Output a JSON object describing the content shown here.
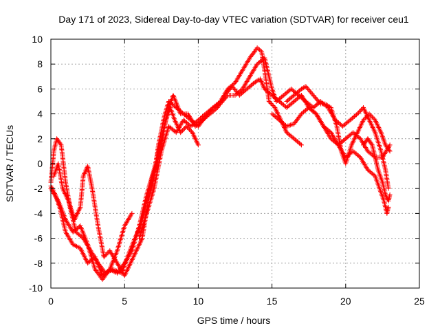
{
  "chart_data": {
    "type": "scatter",
    "title": "Day 171 of 2023, Sidereal Day-to-day VTEC variation (SDTVAR) for receiver ceu1",
    "xlabel": "GPS time / hours",
    "ylabel": "SDTVAR / TECUs",
    "xlim": [
      0,
      25
    ],
    "ylim": [
      -10,
      10
    ],
    "xticks": [
      0,
      5,
      10,
      15,
      20,
      25
    ],
    "yticks": [
      -10,
      -8,
      -6,
      -4,
      -2,
      0,
      2,
      4,
      6,
      8,
      10
    ],
    "grid": true,
    "marker": "+",
    "series": [
      {
        "name": "track-1",
        "color": "#ff0000",
        "points": [
          [
            0,
            -1.8
          ],
          [
            0.3,
            -2.5
          ],
          [
            0.6,
            -3.5
          ],
          [
            1.0,
            -5.5
          ],
          [
            1.5,
            -6.5
          ],
          [
            2.0,
            -6.8
          ],
          [
            2.5,
            -8.0
          ],
          [
            3.0,
            -7.5
          ],
          [
            3.5,
            -9.0
          ],
          [
            4.0,
            -8.5
          ],
          [
            4.5,
            -7.0
          ],
          [
            5.0,
            -5.0
          ],
          [
            5.5,
            -4.0
          ]
        ]
      },
      {
        "name": "track-2",
        "color": "#ff0000",
        "points": [
          [
            0,
            -1.5
          ],
          [
            0.2,
            1.0
          ],
          [
            0.4,
            2.0
          ],
          [
            0.7,
            1.5
          ],
          [
            1.0,
            -1.5
          ],
          [
            1.3,
            -3.5
          ],
          [
            1.7,
            -5.5
          ],
          [
            2.2,
            -6.0
          ],
          [
            2.7,
            -7.0
          ],
          [
            3.2,
            -8.0
          ],
          [
            3.7,
            -8.8
          ],
          [
            4.2,
            -8.5
          ],
          [
            4.8,
            -8.8
          ],
          [
            5.2,
            -7.5
          ],
          [
            5.7,
            -6.0
          ],
          [
            6.1,
            -5.0
          ],
          [
            6.5,
            -3.0
          ],
          [
            6.9,
            -1.0
          ],
          [
            7.2,
            0.0
          ],
          [
            7.5,
            1.5
          ],
          [
            7.8,
            3.5
          ],
          [
            8.1,
            4.5
          ],
          [
            8.4,
            3.5
          ],
          [
            8.8,
            2.5
          ],
          [
            9.2,
            3.0
          ],
          [
            9.6,
            2.5
          ],
          [
            10.0,
            1.5
          ]
        ]
      },
      {
        "name": "track-3",
        "color": "#ff0000",
        "points": [
          [
            0.2,
            -1.0
          ],
          [
            0.5,
            0.0
          ],
          [
            0.8,
            -2.0
          ],
          [
            1.2,
            -3.0
          ],
          [
            1.6,
            -4.5
          ],
          [
            2.0,
            -3.5
          ],
          [
            2.2,
            -1.0
          ],
          [
            2.5,
            -0.2
          ],
          [
            2.8,
            -2.0
          ],
          [
            3.2,
            -5.0
          ],
          [
            3.6,
            -7.5
          ],
          [
            4.0,
            -7.0
          ],
          [
            4.5,
            -8.0
          ],
          [
            5.0,
            -9.0
          ],
          [
            5.4,
            -8.0
          ],
          [
            5.8,
            -7.0
          ],
          [
            6.2,
            -6.0
          ],
          [
            6.6,
            -3.0
          ],
          [
            7.0,
            -1.0
          ],
          [
            7.3,
            1.5
          ],
          [
            7.7,
            3.8
          ],
          [
            8.0,
            5.0
          ],
          [
            8.5,
            4.5
          ],
          [
            9.0,
            4.0
          ],
          [
            9.5,
            3.5
          ],
          [
            10.0,
            3.0
          ],
          [
            10.5,
            3.8
          ],
          [
            11.0,
            4.5
          ],
          [
            11.5,
            5.0
          ],
          [
            12.0,
            6.0
          ],
          [
            12.5,
            6.5
          ],
          [
            13.0,
            7.5
          ],
          [
            13.5,
            8.5
          ],
          [
            14.0,
            9.3
          ],
          [
            14.3,
            9.0
          ],
          [
            14.5,
            7.5
          ],
          [
            14.8,
            5.0
          ],
          [
            15.2,
            4.5
          ],
          [
            15.6,
            3.5
          ],
          [
            16.0,
            2.5
          ],
          [
            16.5,
            2.0
          ],
          [
            17.0,
            1.5
          ]
        ]
      },
      {
        "name": "track-4",
        "color": "#ff0000",
        "points": [
          [
            0,
            -2.0
          ],
          [
            0.5,
            -3.0
          ],
          [
            1.0,
            -4.5
          ],
          [
            1.5,
            -5.5
          ],
          [
            2.0,
            -5.0
          ],
          [
            2.5,
            -6.5
          ],
          [
            3.0,
            -8.5
          ],
          [
            3.5,
            -9.3
          ],
          [
            4.0,
            -8.5
          ],
          [
            4.5,
            -8.8
          ],
          [
            5.0,
            -8.0
          ],
          [
            5.5,
            -7.0
          ],
          [
            6.0,
            -5.0
          ],
          [
            6.5,
            -2.5
          ],
          [
            7.0,
            -0.5
          ],
          [
            7.5,
            2.0
          ],
          [
            8.0,
            4.5
          ],
          [
            8.3,
            5.5
          ],
          [
            8.8,
            4.0
          ],
          [
            9.3,
            4.0
          ],
          [
            9.8,
            3.0
          ],
          [
            10.3,
            3.5
          ],
          [
            10.8,
            4.0
          ],
          [
            11.3,
            4.5
          ],
          [
            11.8,
            5.5
          ],
          [
            12.3,
            6.2
          ],
          [
            12.8,
            5.5
          ],
          [
            13.3,
            6.0
          ],
          [
            13.8,
            6.5
          ],
          [
            14.2,
            6.8
          ],
          [
            14.5,
            6.0
          ],
          [
            15.0,
            5.5
          ],
          [
            15.5,
            5.0
          ],
          [
            16.0,
            4.5
          ],
          [
            16.5,
            5.0
          ],
          [
            17.0,
            5.5
          ],
          [
            17.5,
            4.5
          ],
          [
            18.0,
            4.0
          ],
          [
            18.5,
            3.0
          ],
          [
            19.0,
            2.0
          ],
          [
            19.5,
            1.5
          ],
          [
            20.0,
            2.0
          ],
          [
            20.5,
            2.5
          ],
          [
            21.0,
            2.0
          ],
          [
            21.5,
            1.0
          ],
          [
            22.0,
            0.5
          ],
          [
            22.5,
            0.5
          ],
          [
            23.0,
            1.5
          ]
        ]
      },
      {
        "name": "track-5",
        "color": "#ff0000",
        "points": [
          [
            6.0,
            -6.0
          ],
          [
            6.5,
            -4.0
          ],
          [
            7.0,
            -2.0
          ],
          [
            7.5,
            1.0
          ],
          [
            8.0,
            3.0
          ],
          [
            8.5,
            2.5
          ],
          [
            9.0,
            3.5
          ],
          [
            9.5,
            3.0
          ],
          [
            10.0,
            3.5
          ],
          [
            10.5,
            4.0
          ],
          [
            11.0,
            4.5
          ],
          [
            11.5,
            4.8
          ],
          [
            12.0,
            5.5
          ],
          [
            12.5,
            5.5
          ],
          [
            13.0,
            6.0
          ],
          [
            13.5,
            7.0
          ],
          [
            14.0,
            8.0
          ],
          [
            14.5,
            8.5
          ],
          [
            15.0,
            6.0
          ],
          [
            15.3,
            5.0
          ],
          [
            15.8,
            5.5
          ],
          [
            16.3,
            6.0
          ],
          [
            16.8,
            5.5
          ],
          [
            17.3,
            5.0
          ],
          [
            17.8,
            4.5
          ],
          [
            18.3,
            5.0
          ],
          [
            18.8,
            4.5
          ],
          [
            19.3,
            3.5
          ],
          [
            19.8,
            3.0
          ],
          [
            20.3,
            3.5
          ],
          [
            20.8,
            4.0
          ],
          [
            21.2,
            4.5
          ],
          [
            21.6,
            3.5
          ],
          [
            22.0,
            2.5
          ],
          [
            22.4,
            1.0
          ],
          [
            22.7,
            -0.5
          ],
          [
            22.9,
            -2.0
          ]
        ]
      },
      {
        "name": "track-6",
        "color": "#ff0000",
        "points": [
          [
            15.0,
            4.0
          ],
          [
            15.5,
            3.5
          ],
          [
            16.0,
            3.0
          ],
          [
            16.5,
            3.2
          ],
          [
            17.0,
            4.0
          ],
          [
            17.5,
            4.5
          ],
          [
            18.0,
            4.0
          ],
          [
            18.5,
            3.0
          ],
          [
            19.0,
            2.5
          ],
          [
            19.5,
            1.5
          ],
          [
            20.0,
            0.5
          ],
          [
            20.5,
            1.0
          ],
          [
            21.0,
            0.5
          ],
          [
            21.5,
            -0.5
          ],
          [
            22.0,
            -1.0
          ],
          [
            22.3,
            -2.0
          ],
          [
            22.6,
            -3.0
          ],
          [
            22.8,
            -4.0
          ],
          [
            22.9,
            -3.5
          ]
        ]
      },
      {
        "name": "track-7",
        "color": "#ff0000",
        "points": [
          [
            16.0,
            5.0
          ],
          [
            16.5,
            5.5
          ],
          [
            17.0,
            6.0
          ],
          [
            17.3,
            6.2
          ],
          [
            17.8,
            5.5
          ],
          [
            18.3,
            4.8
          ],
          [
            18.6,
            4.8
          ],
          [
            19.0,
            4.5
          ],
          [
            19.4,
            3.0
          ],
          [
            19.7,
            1.0
          ],
          [
            20.0,
            0.0
          ],
          [
            20.4,
            1.5
          ],
          [
            20.8,
            2.5
          ],
          [
            21.2,
            3.5
          ],
          [
            21.6,
            4.0
          ],
          [
            22.0,
            3.5
          ],
          [
            22.4,
            2.5
          ],
          [
            22.7,
            1.5
          ],
          [
            23.0,
            1.0
          ]
        ]
      },
      {
        "name": "track-8",
        "color": "#ff0000",
        "points": [
          [
            21.2,
            1.5
          ],
          [
            21.5,
            2.0
          ],
          [
            21.8,
            1.5
          ],
          [
            22.0,
            0.5
          ],
          [
            22.2,
            -0.5
          ],
          [
            22.5,
            -1.5
          ],
          [
            22.7,
            -2.5
          ],
          [
            22.9,
            -3.0
          ],
          [
            23.0,
            -2.5
          ]
        ]
      }
    ]
  }
}
